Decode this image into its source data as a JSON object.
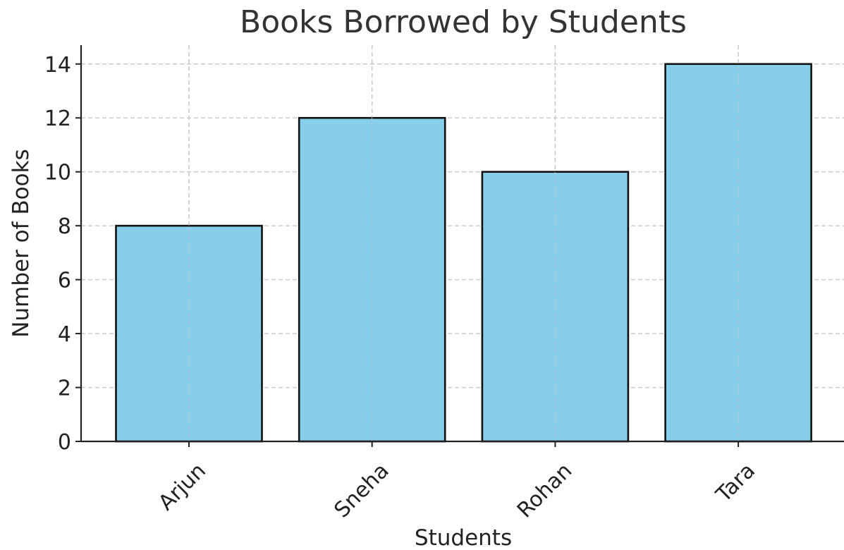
{
  "chart_data": {
    "type": "bar",
    "title": "Books Borrowed by Students",
    "xlabel": "Students",
    "ylabel": "Number of Books",
    "categories": [
      "Arjun",
      "Sneha",
      "Rohan",
      "Tara"
    ],
    "values": [
      8,
      12,
      10,
      14
    ],
    "ylim": [
      0,
      14.7
    ],
    "yticks": [
      "0",
      "2",
      "4",
      "6",
      "8",
      "10",
      "12",
      "14"
    ],
    "grid": true,
    "bar_color": "#87CEEB",
    "bar_edge_color": "#111111"
  }
}
